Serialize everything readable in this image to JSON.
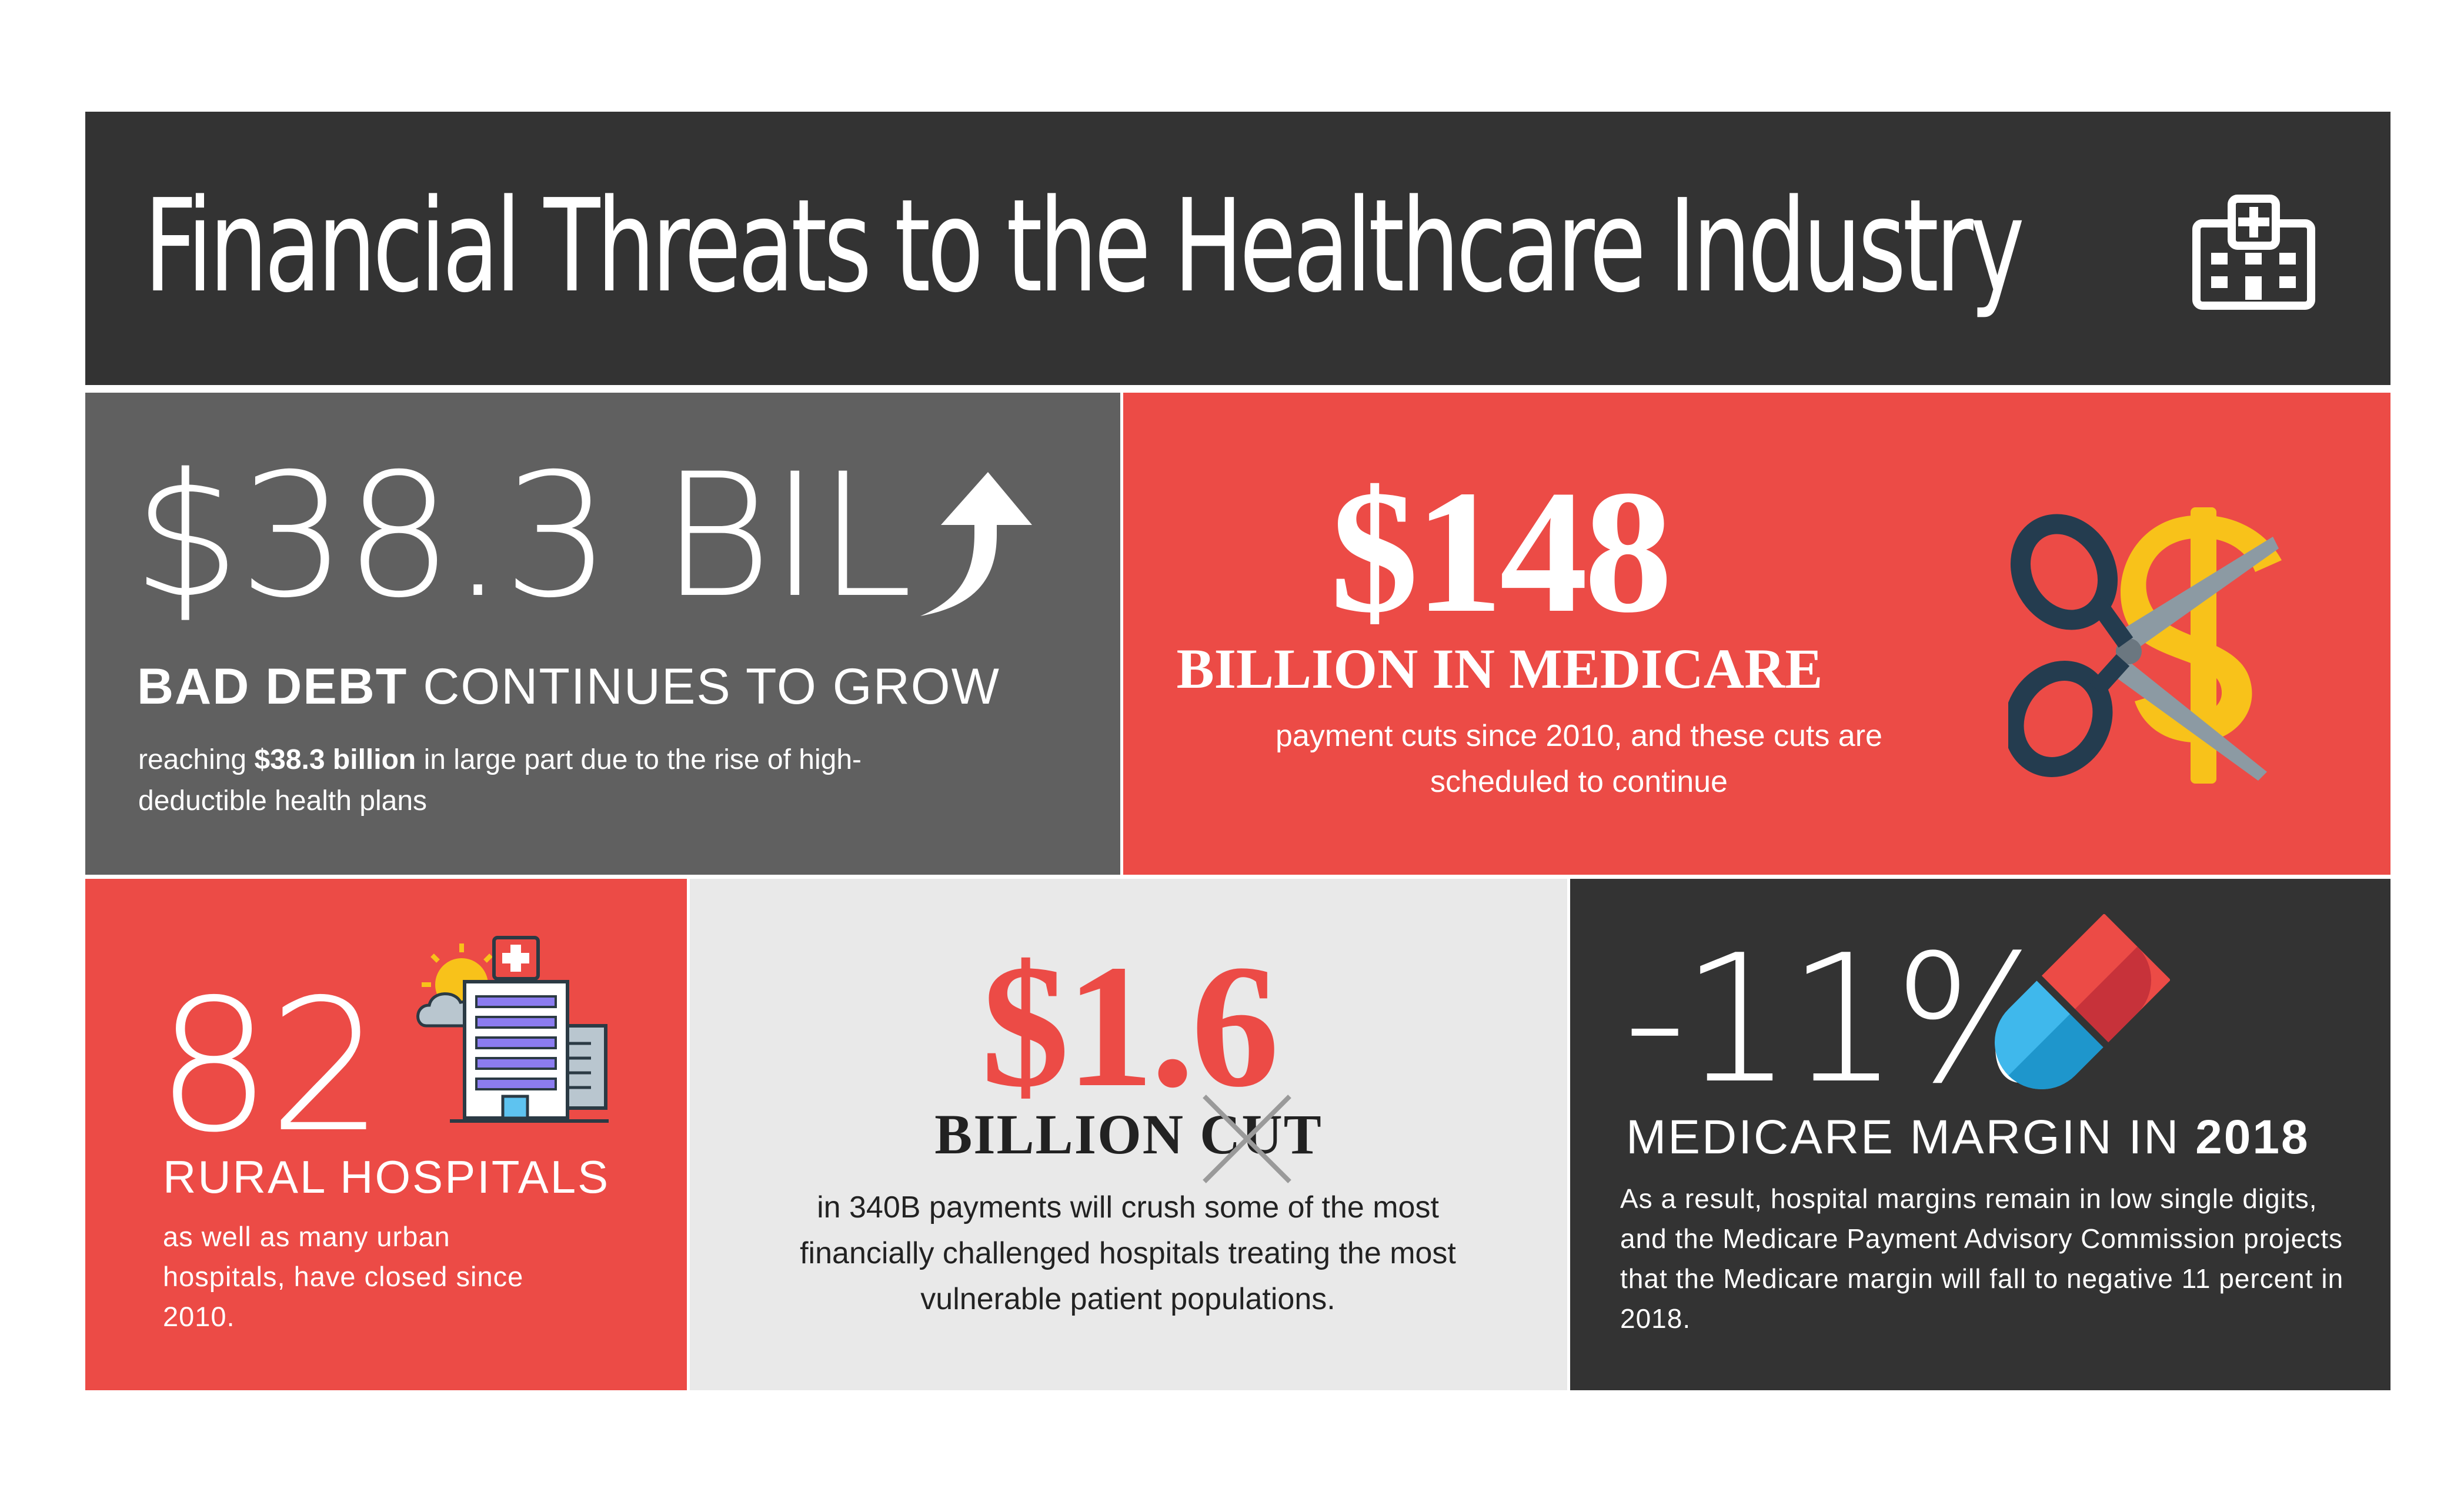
{
  "colors": {
    "dark": "#333333",
    "gray": "#606060",
    "red": "#ec4b46",
    "light": "#e9e9e9",
    "white": "#ffffff",
    "black": "#222222"
  },
  "header": {
    "title": "Financial Threats to the Healthcare Industry",
    "icon": "hospital-building-icon"
  },
  "bad_debt": {
    "value": "$38.3 BIL",
    "heading_bold": "BAD DEBT",
    "heading_rest": " CONTINUES TO GROW",
    "text_before": "reaching ",
    "text_bold": "$38.3 billion",
    "text_after": " in large part due to the rise of high-deductible health plans",
    "icon": "trend-up-arrow-icon"
  },
  "medicare_cuts": {
    "value": "$148",
    "heading": "BILLION IN MEDICARE",
    "text": "payment cuts since 2010, and these cuts are scheduled to continue",
    "icon": "scissors-cutting-dollar-icon"
  },
  "rural": {
    "value": "82",
    "heading": "RURAL HOSPITALS",
    "text": "as well as many urban hospitals, have closed since 2010.",
    "icon": "hospital-with-sun-icon"
  },
  "payments_340b": {
    "value": "$1.6",
    "heading": "BILLION CUT",
    "text": "in 340B payments will crush some of the most financially challenged hospitals treating the most vulnerable patient populations.",
    "icon": "strike-cross-icon"
  },
  "margin": {
    "value": "-11%",
    "heading_rest": "MEDICARE MARGIN IN ",
    "heading_bold": "2018",
    "text": "As a result, hospital margins remain in low single digits, and the Medicare Payment Advisory Commission projects that the Medicare margin will fall to negative 11 percent in 2018.",
    "icon": "pill-capsule-icon"
  }
}
